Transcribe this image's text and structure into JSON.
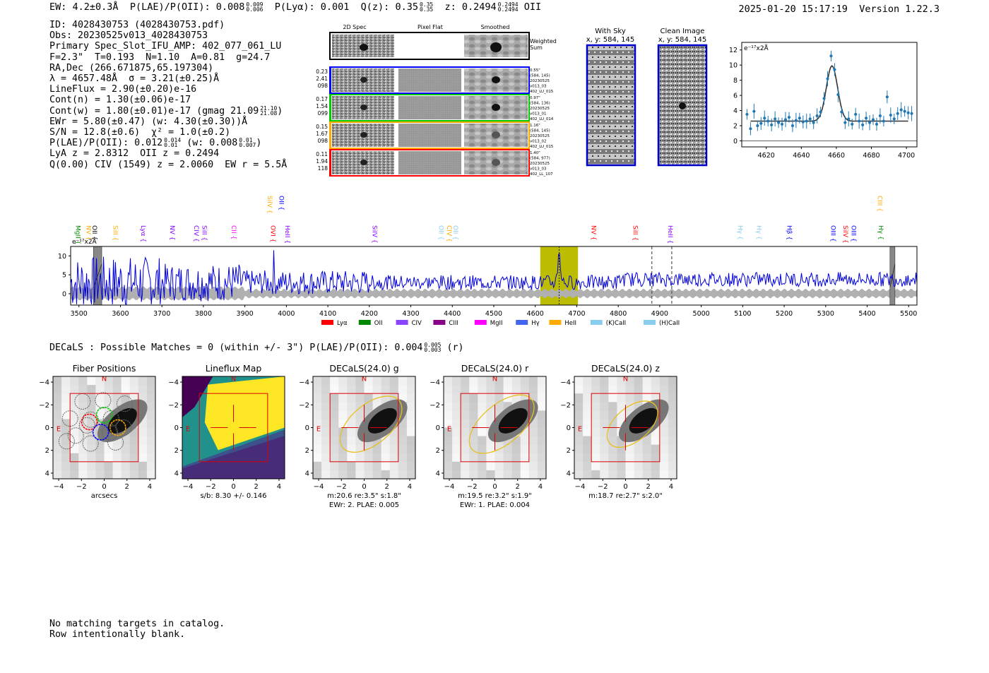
{
  "header": {
    "ew": "EW: 4.2±0.3Å",
    "plae_label": "P(LAE)/P(OII): 0.008",
    "plae_hi": "0.009",
    "plae_lo": "0.006",
    "plya": "P(Lyα): 0.001",
    "qz_label": "Q(z): 0.35",
    "qz_hi": "0.35",
    "qz_lo": "0.35",
    "z_label": "z: 0.2494",
    "z_hi": "0.2494",
    "z_lo": "0.2494",
    "line": "OII",
    "timestamp": "2025-01-20 15:17:19",
    "version": "Version 1.22.3"
  },
  "info": {
    "id": "ID: 4028430753 (4028430753.pdf)",
    "obs": "Obs: 20230525v013_4028430753",
    "primary": "Primary Spec_Slot_IFU_AMP: 402_077_061_LU",
    "params": "F=2.3\"  T=0.193  N=1.10  A=0.81  g=24.7",
    "radec": "RA,Dec (266.671875,65.197304)",
    "lambda": "λ = 4657.48Å  σ = 3.21(±0.25)Å",
    "lineflux": "LineFlux = 2.90(±0.20)e-16",
    "contn": "Cont(n) = 1.30(±0.06)e-17",
    "contw": "Cont(w) = 1.80(±0.01)e-17 (gmag 21.09",
    "contw_hi": "21.10",
    "contw_lo": "21.08",
    "ewr": "EWr = 5.80(±0.47) (w: 4.30(±0.30))Å",
    "sn": "S/N = 12.8(±0.6)  χ² = 1.0(±0.2)",
    "plae": "P(LAE)/P(OII): 0.012",
    "plae_hi": "0.014",
    "plae_lo": "0.01",
    "plae_w": "(w: 0.008",
    "plae_w_hi": "0.01",
    "plae_w_lo": "0.007",
    "lya": "LyA z = 2.8312  OII z = 0.2494",
    "civ": "Q(0.00) CIV (1549) z = 2.0060  EW r = 5.5Å"
  },
  "fiber_panel": {
    "headers": [
      "2D Spec",
      "Pixel Flat",
      "Smoothed"
    ],
    "weighted_sum": "Weighted Sum",
    "rows": [
      {
        "color": "#0000ff",
        "left": [
          "0.23",
          "2.41",
          "098"
        ],
        "right": [
          "0.55\"",
          "(584, 145)",
          "20230525",
          "v013_03",
          "402_LU_015"
        ]
      },
      {
        "color": "#00cc00",
        "left": [
          "0.17",
          "1.54",
          "099"
        ],
        "right": [
          "0.97\"",
          "(584, 136)",
          "20230525",
          "v013_01",
          "402_LU_014"
        ]
      },
      {
        "color": "#ffaa00",
        "left": [
          "0.15",
          "1.67",
          "098"
        ],
        "right": [
          "1.16\"",
          "(584, 145)",
          "20230525",
          "v013_02",
          "402_LU_015"
        ]
      },
      {
        "color": "#ff0000",
        "left": [
          "0.11",
          "1.94",
          "118"
        ],
        "right": [
          "1.40\"",
          "(584, 977)",
          "20230525",
          "v013_03",
          "402_LL_107"
        ]
      }
    ]
  },
  "sky": {
    "with_sky_title": "With Sky",
    "with_sky_xy": "x, y: 584, 145",
    "clean_title": "Clean Image",
    "clean_xy": "x, y: 584, 145"
  },
  "chart_data": [
    {
      "type": "scatter",
      "name": "line-fit",
      "unit_label": "e⁻¹⁷x2Å",
      "xlim": [
        4606,
        4706
      ],
      "ylim": [
        -0.8,
        13
      ],
      "xticks": [
        4620,
        4640,
        4660,
        4680,
        4700
      ],
      "yticks": [
        0,
        2,
        4,
        6,
        8,
        10,
        12
      ],
      "fit": {
        "center": 4657.5,
        "sigma": 3.21,
        "amp": 7.3,
        "cont": 2.6
      },
      "x": [
        4609,
        4611,
        4613,
        4615,
        4617,
        4619,
        4621,
        4623,
        4625,
        4627,
        4629,
        4631,
        4633,
        4635,
        4637,
        4639,
        4641,
        4643,
        4645,
        4647,
        4649,
        4651,
        4653,
        4655,
        4657,
        4659,
        4661,
        4663,
        4665,
        4667,
        4669,
        4671,
        4673,
        4675,
        4677,
        4679,
        4681,
        4683,
        4685,
        4687,
        4689,
        4691,
        4693,
        4695,
        4697,
        4699,
        4701,
        4703
      ],
      "y": [
        3.5,
        1.6,
        3.9,
        2.0,
        2.3,
        3.0,
        2.6,
        2.1,
        2.9,
        2.4,
        2.2,
        2.8,
        3.1,
        2.0,
        2.7,
        3.0,
        2.5,
        2.6,
        2.9,
        2.4,
        3.3,
        3.8,
        5.6,
        8.2,
        11.2,
        9.4,
        6.1,
        3.8,
        2.4,
        2.9,
        2.2,
        3.5,
        2.6,
        2.1,
        3.0,
        2.4,
        2.8,
        2.2,
        3.3,
        2.6,
        5.8,
        3.4,
        2.9,
        3.6,
        4.1,
        3.9,
        3.7,
        3.6
      ]
    },
    {
      "type": "line",
      "name": "full-spectrum",
      "unit_label": "e⁻¹⁷x2Å",
      "xlim": [
        3480,
        5520
      ],
      "ylim": [
        -3,
        12.5
      ],
      "xticks": [
        3500,
        3600,
        3700,
        3800,
        3900,
        4000,
        4100,
        4200,
        4300,
        4400,
        4500,
        4600,
        4700,
        4800,
        4900,
        5000,
        5100,
        5200,
        5300,
        5400,
        5500
      ],
      "yticks": [
        0,
        5,
        10
      ],
      "highlight_range": [
        4612,
        4703
      ],
      "peak": 4657.5,
      "dashed_lines": [
        4881,
        4929
      ],
      "hatched_ranges": [
        [
          3535,
          3555
        ],
        [
          5455,
          5467
        ]
      ],
      "line_labels": [
        {
          "name": "MgII",
          "wave": 3498,
          "color": "#008800",
          "tier": 1
        },
        {
          "name": "NV",
          "wave": 3523,
          "color": "#ffaa00",
          "tier": 1
        },
        {
          "name": "OII",
          "wave": 3538,
          "color": "#000000",
          "tier": 1
        },
        {
          "name": "SiII",
          "wave": 3588,
          "color": "#ffaa00",
          "tier": 1
        },
        {
          "name": "Lyα",
          "wave": 3655,
          "color": "#8800ff",
          "tier": 1
        },
        {
          "name": "NV",
          "wave": 3725,
          "color": "#8800ff",
          "tier": 1
        },
        {
          "name": "CIV",
          "wave": 3783,
          "color": "#8800ff",
          "tier": 1
        },
        {
          "name": "SiII",
          "wave": 3803,
          "color": "#8800ff",
          "tier": 1
        },
        {
          "name": "CII",
          "wave": 3873,
          "color": "#ff00ff",
          "tier": 1
        },
        {
          "name": "OVI",
          "wave": 3968,
          "color": "#ff0000",
          "tier": 1
        },
        {
          "name": "HeII",
          "wave": 4003,
          "color": "#8800ff",
          "tier": 1
        },
        {
          "name": "SiIV",
          "wave": 3960,
          "color": "#ffaa00",
          "tier": 2
        },
        {
          "name": "OII",
          "wave": 3988,
          "color": "#0000ff",
          "tier": 2
        },
        {
          "name": "SiIV",
          "wave": 4213,
          "color": "#8800ff",
          "tier": 1
        },
        {
          "name": "OII",
          "wave": 4373,
          "color": "#88ccee",
          "tier": 1
        },
        {
          "name": "CIV",
          "wave": 4393,
          "color": "#ffaa00",
          "tier": 1
        },
        {
          "name": "OII",
          "wave": 4408,
          "color": "#88ccee",
          "tier": 1
        },
        {
          "name": "NV",
          "wave": 4741,
          "color": "#ff0000",
          "tier": 1
        },
        {
          "name": "SiII",
          "wave": 4841,
          "color": "#ff0000",
          "tier": 1
        },
        {
          "name": "HeII",
          "wave": 4926,
          "color": "#8800ff",
          "tier": 1
        },
        {
          "name": "Hγ",
          "wave": 5094,
          "color": "#88ccee",
          "tier": 1
        },
        {
          "name": "Hγ",
          "wave": 5139,
          "color": "#88ccee",
          "tier": 1
        },
        {
          "name": "Hβ",
          "wave": 5213,
          "color": "#0000ff",
          "tier": 1
        },
        {
          "name": "OIII",
          "wave": 5318,
          "color": "#0000ff",
          "tier": 1
        },
        {
          "name": "SiIV",
          "wave": 5348,
          "color": "#ff0000",
          "tier": 1
        },
        {
          "name": "OIII",
          "wave": 5368,
          "color": "#0000ff",
          "tier": 1
        },
        {
          "name": "Hγ",
          "wave": 5433,
          "color": "#008800",
          "tier": 1
        },
        {
          "name": "CIII",
          "wave": 5431,
          "color": "#ffaa00",
          "tier": 2
        }
      ]
    }
  ],
  "legend": [
    {
      "label": "Lyα",
      "color": "#ff0000"
    },
    {
      "label": "OII",
      "color": "#008800"
    },
    {
      "label": "CIV",
      "color": "#8844ff"
    },
    {
      "label": "CIII",
      "color": "#880088"
    },
    {
      "label": "MgII",
      "color": "#ff00ff"
    },
    {
      "label": "Hγ",
      "color": "#4466ee"
    },
    {
      "label": "HeII",
      "color": "#ffaa00"
    },
    {
      "label": "(K)CaII",
      "color": "#88ccee"
    },
    {
      "label": "(H)CaII",
      "color": "#88ccee"
    }
  ],
  "decals": {
    "line": "DECaLS : Possible Matches = 0 (within +/- 3\")  P(LAE)/P(OII): 0.004",
    "hi": "0.005",
    "lo": "0.003",
    "band": "(r)"
  },
  "cutouts": [
    {
      "title": "Fiber Positions",
      "caption1": "arcsecs",
      "caption2": ""
    },
    {
      "title": "Lineflux Map",
      "caption1": "s/b: 8.30 +/- 0.146",
      "caption2": ""
    },
    {
      "title": "DECaLS(24.0) g",
      "caption1": "m:20.6  re:3.5\"  s:1.8\"",
      "caption2": "EWr: 2. PLAE: 0.005"
    },
    {
      "title": "DECaLS(24.0) r",
      "caption1": "m:19.5  re:3.2\"  s:1.9\"",
      "caption2": "EWr: 1. PLAE: 0.004"
    },
    {
      "title": "DECaLS(24.0) z",
      "caption1": "m:18.7  re:2.7\"  s:2.0\"",
      "caption2": ""
    }
  ],
  "cutout_axes": {
    "ticks": [
      "−4",
      "−2",
      "0",
      "2",
      "4"
    ],
    "north": "N",
    "east": "E"
  },
  "note": {
    "line1": "No matching targets in catalog.",
    "line2": "Row intentionally blank."
  }
}
